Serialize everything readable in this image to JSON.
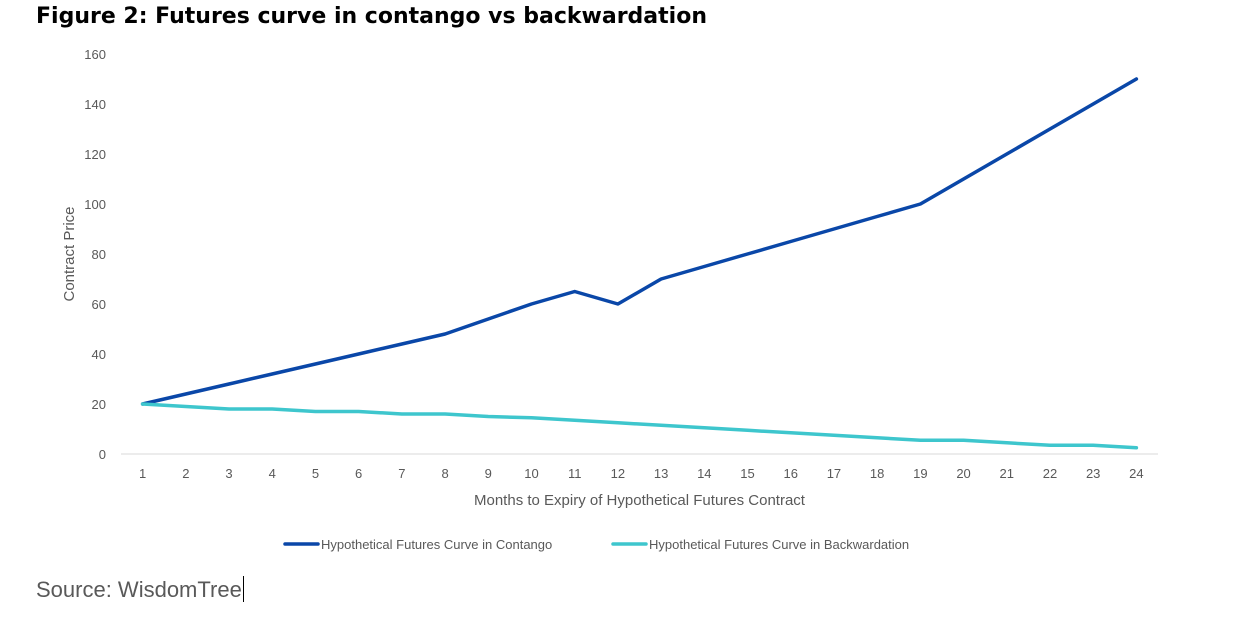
{
  "figure_title": "Figure 2: Futures curve in contango vs backwardation",
  "source_text": "Source: WisdomTree",
  "colors": {
    "contango": "#0a47a8",
    "backwardation": "#3ec6cd",
    "axis": "#d9d9d9",
    "text": "#595959"
  },
  "chart_data": {
    "type": "line",
    "title": "Figure 2: Futures curve in contango vs backwardation",
    "xlabel": "Months to Expiry of Hypothetical Futures Contract",
    "ylabel": "Contract Price",
    "ylim": [
      0,
      160
    ],
    "yticks": [
      0,
      20,
      40,
      60,
      80,
      100,
      120,
      140,
      160
    ],
    "grid": false,
    "legend_position": "bottom",
    "x": [
      1,
      2,
      3,
      4,
      5,
      6,
      7,
      8,
      9,
      10,
      11,
      12,
      13,
      14,
      15,
      16,
      17,
      18,
      19,
      20,
      21,
      22,
      23,
      24
    ],
    "series": [
      {
        "name": "Hypothetical Futures Curve in Contango",
        "color": "#0a47a8",
        "values": [
          20,
          24,
          28,
          32,
          36,
          40,
          44,
          48,
          54,
          60,
          65,
          60,
          70,
          75,
          80,
          85,
          90,
          95,
          100,
          110,
          120,
          130,
          140,
          150
        ]
      },
      {
        "name": "Hypothetical Futures Curve in Backwardation",
        "color": "#3ec6cd",
        "values": [
          20,
          19,
          18,
          18,
          17,
          17,
          16,
          16,
          15,
          14.5,
          13.5,
          12.5,
          11.5,
          10.5,
          9.5,
          8.5,
          7.5,
          6.5,
          5.5,
          5.5,
          4.5,
          3.5,
          3.5,
          2.5
        ]
      }
    ]
  }
}
